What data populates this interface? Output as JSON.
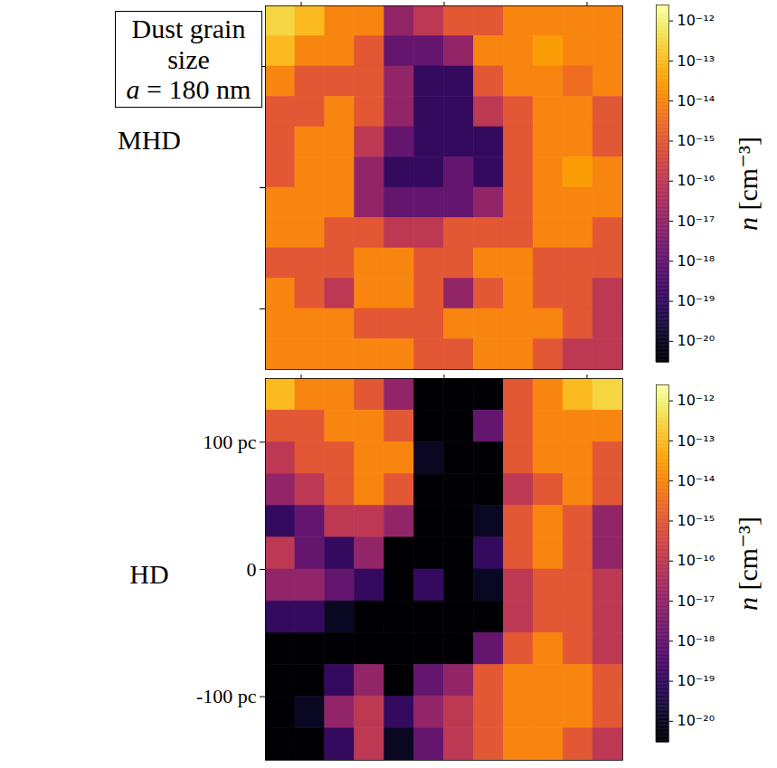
{
  "chart_data": [
    {
      "type": "heatmap",
      "annotation": [
        "Dust grain size",
        "a = 180 nm"
      ],
      "label": "MHD",
      "xlim": [
        -125,
        125
      ],
      "xticks": [
        -100,
        0,
        100
      ],
      "ylim": [
        -150,
        150
      ],
      "yticks": [
        -100,
        0,
        100
      ],
      "tick_labels": false,
      "color": "inferno",
      "cells": [
        [
          3e-13,
          1e-13,
          1e-14,
          1e-14,
          1e-17,
          1e-16,
          1e-15,
          1e-15,
          1e-14,
          1e-14,
          1e-14,
          1e-14
        ],
        [
          1e-13,
          1e-14,
          1e-14,
          1e-15,
          1e-18,
          1e-18,
          1e-17,
          1e-14,
          1e-14,
          3e-14,
          1e-14,
          1e-14
        ],
        [
          1e-14,
          1e-15,
          1e-15,
          1e-15,
          1e-17,
          1e-19,
          1e-19,
          1e-15,
          1e-14,
          1e-14,
          3e-15,
          1e-14
        ],
        [
          1e-15,
          1e-15,
          1e-14,
          1e-15,
          1e-17,
          1e-19,
          1e-19,
          1e-16,
          1e-15,
          1e-14,
          1e-14,
          1e-15
        ],
        [
          1e-15,
          1e-14,
          1e-14,
          1e-16,
          1e-18,
          1e-19,
          1e-19,
          1e-19,
          1e-15,
          1e-14,
          1e-14,
          1e-15
        ],
        [
          1e-15,
          1e-14,
          1e-14,
          1e-17,
          1e-19,
          1e-19,
          1e-18,
          1e-19,
          1e-15,
          1e-14,
          3e-14,
          1e-14
        ],
        [
          1e-14,
          1e-14,
          1e-14,
          1e-17,
          1e-18,
          1e-18,
          1e-18,
          1e-17,
          1e-15,
          1e-14,
          1e-14,
          1e-14
        ],
        [
          1e-14,
          1e-14,
          1e-15,
          1e-15,
          1e-16,
          1e-16,
          1e-15,
          1e-15,
          1e-15,
          1e-14,
          1e-14,
          1e-15
        ],
        [
          1e-15,
          1e-15,
          1e-15,
          1e-14,
          1e-14,
          1e-15,
          1e-15,
          1e-14,
          1e-14,
          1e-15,
          1e-15,
          1e-15
        ],
        [
          1e-14,
          1e-15,
          1e-16,
          1e-14,
          1e-14,
          1e-15,
          1e-17,
          1e-15,
          1e-14,
          1e-15,
          1e-15,
          1e-16
        ],
        [
          1e-14,
          1e-14,
          1e-14,
          1e-15,
          1e-15,
          1e-15,
          1e-14,
          1e-14,
          1e-14,
          1e-14,
          1e-15,
          1e-16
        ],
        [
          1e-14,
          1e-14,
          1e-14,
          1e-14,
          1e-14,
          1e-15,
          1e-15,
          1e-14,
          1e-14,
          1e-15,
          1e-16,
          1e-16
        ]
      ],
      "colorbar": {
        "range": [
          3e-21,
          2.5e-12
        ],
        "label": "n [cm⁻³]",
        "ticks": [
          {
            "value": 1e-12,
            "label": "10⁻¹²"
          },
          {
            "value": 1e-13,
            "label": "10⁻¹³"
          },
          {
            "value": 1e-14,
            "label": "10⁻¹⁴"
          },
          {
            "value": 1e-15,
            "label": "10⁻¹⁵"
          },
          {
            "value": 1e-16,
            "label": "10⁻¹⁶"
          },
          {
            "value": 1e-17,
            "label": "10⁻¹⁷"
          },
          {
            "value": 1e-18,
            "label": "10⁻¹⁸"
          },
          {
            "value": 1e-19,
            "label": "10⁻¹⁹"
          },
          {
            "value": 1e-20,
            "label": "10⁻²⁰"
          }
        ]
      }
    },
    {
      "type": "heatmap",
      "label": "HD",
      "xlim": [
        -125,
        125
      ],
      "xticks": [
        -100,
        0,
        100
      ],
      "ylim": [
        -150,
        150
      ],
      "yticks": [
        {
          "value": -100,
          "label": "-100 pc"
        },
        0,
        {
          "value": 100,
          "label": "100 pc"
        }
      ],
      "tick_labels": "y",
      "color": "inferno",
      "cells": [
        [
          1e-13,
          1e-14,
          1e-14,
          1e-15,
          1e-17,
          3e-21,
          3e-21,
          3e-21,
          1e-15,
          1e-14,
          1e-13,
          3e-13
        ],
        [
          1e-15,
          1e-15,
          1e-14,
          1e-14,
          1e-15,
          3e-21,
          3e-21,
          1e-18,
          1e-15,
          1e-14,
          1e-14,
          1e-14
        ],
        [
          1e-16,
          1e-15,
          1e-15,
          1e-14,
          1e-14,
          1e-20,
          3e-21,
          3e-21,
          1e-15,
          1e-14,
          1e-14,
          1e-15
        ],
        [
          1e-17,
          1e-16,
          1e-15,
          1e-14,
          1e-15,
          3e-21,
          3e-21,
          3e-21,
          1e-16,
          1e-15,
          1e-14,
          1e-15
        ],
        [
          1e-19,
          1e-18,
          1e-16,
          1e-16,
          1e-17,
          3e-21,
          3e-21,
          1e-20,
          1e-15,
          1e-14,
          1e-15,
          1e-17
        ],
        [
          1e-16,
          1e-18,
          1e-19,
          1e-17,
          3e-21,
          3e-21,
          3e-21,
          1e-19,
          1e-15,
          1e-14,
          1e-15,
          1e-17
        ],
        [
          1e-17,
          1e-17,
          1e-18,
          1e-19,
          3e-21,
          1e-19,
          3e-21,
          1e-20,
          1e-16,
          1e-15,
          1e-15,
          1e-16
        ],
        [
          1e-19,
          1e-19,
          1e-20,
          3e-21,
          3e-21,
          3e-21,
          3e-21,
          3e-21,
          1e-16,
          1e-15,
          1e-15,
          1e-16
        ],
        [
          3e-21,
          3e-21,
          3e-21,
          3e-21,
          3e-21,
          3e-21,
          3e-21,
          1e-18,
          1e-15,
          1e-14,
          1e-15,
          1e-16
        ],
        [
          3e-21,
          3e-21,
          1e-19,
          1e-17,
          3e-21,
          1e-18,
          1e-17,
          1e-15,
          1e-14,
          1e-14,
          1e-14,
          1e-15
        ],
        [
          3e-21,
          1e-20,
          1e-17,
          1e-16,
          1e-19,
          1e-17,
          1e-16,
          1e-15,
          1e-14,
          1e-14,
          1e-14,
          1e-15
        ],
        [
          3e-21,
          3e-21,
          1e-19,
          1e-16,
          1e-20,
          1e-18,
          1e-16,
          1e-15,
          1e-14,
          1e-14,
          1e-15,
          1e-16
        ]
      ],
      "colorbar": {
        "range": [
          3e-21,
          2.5e-12
        ],
        "label": "n [cm⁻³]",
        "ticks": [
          {
            "value": 1e-12,
            "label": "10⁻¹²"
          },
          {
            "value": 1e-13,
            "label": "10⁻¹³"
          },
          {
            "value": 1e-14,
            "label": "10⁻¹⁴"
          },
          {
            "value": 1e-15,
            "label": "10⁻¹⁵"
          },
          {
            "value": 1e-16,
            "label": "10⁻¹⁶"
          },
          {
            "value": 1e-17,
            "label": "10⁻¹⁷"
          },
          {
            "value": 1e-18,
            "label": "10⁻¹⁸"
          },
          {
            "value": 1e-19,
            "label": "10⁻¹⁹"
          },
          {
            "value": 1e-20,
            "label": "10⁻²⁰"
          }
        ]
      }
    }
  ]
}
